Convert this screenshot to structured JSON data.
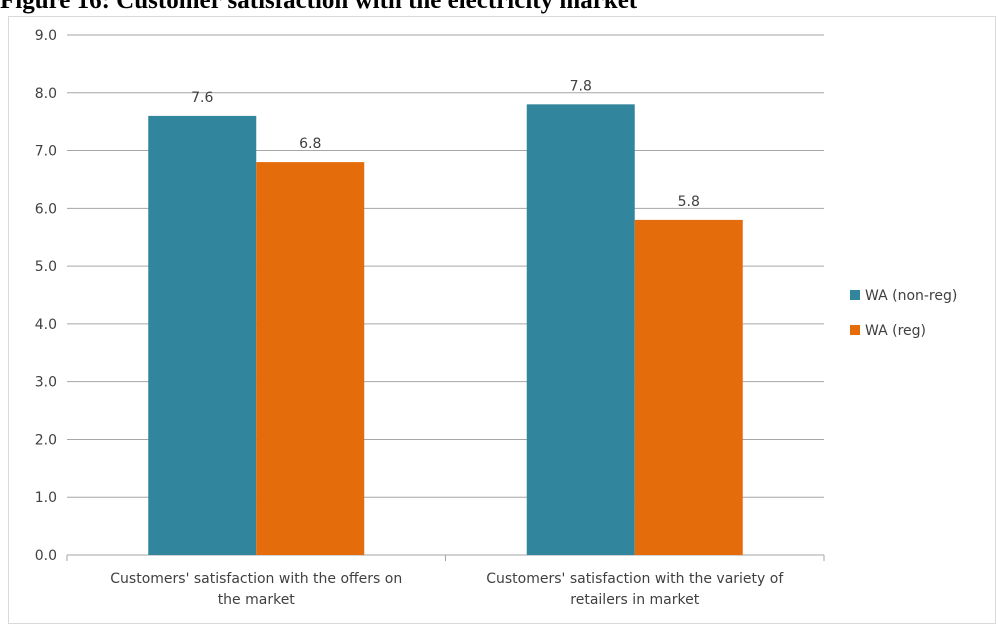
{
  "figure_title": "Figure 16: Customer satisfaction with the electricity market",
  "chart_data": {
    "type": "bar",
    "title": "",
    "xlabel": "",
    "ylabel": "",
    "ylim": [
      0,
      9
    ],
    "yticks": [
      "0.0",
      "1.0",
      "2.0",
      "3.0",
      "4.0",
      "5.0",
      "6.0",
      "7.0",
      "8.0",
      "9.0"
    ],
    "grid": true,
    "legend_position": "right",
    "categories": [
      [
        "Customers' satisfaction with the offers on",
        "the market"
      ],
      [
        "Customers' satisfaction with the variety of",
        "retailers in market"
      ]
    ],
    "series": [
      {
        "name": "WA (non-reg)",
        "color": "#31859c",
        "values": [
          7.6,
          7.8
        ],
        "labels": [
          "7.6",
          "7.8"
        ]
      },
      {
        "name": "WA (reg)",
        "color": "#e46c0a",
        "values": [
          6.8,
          5.8
        ],
        "labels": [
          "6.8",
          "5.8"
        ]
      }
    ]
  }
}
